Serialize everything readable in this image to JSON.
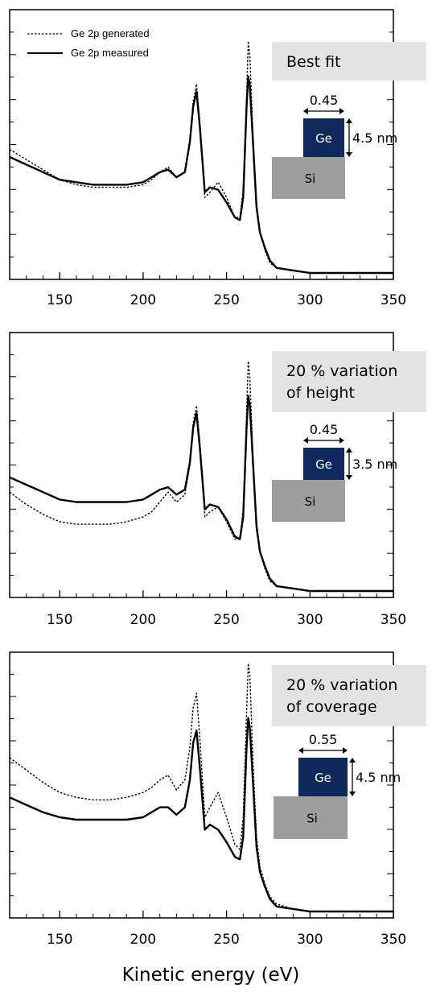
{
  "colors": {
    "ge_block": "#0e2a5c",
    "si_block": "#9e9e9e",
    "label_box": "#e3e3e3",
    "line": "#000000"
  },
  "chart_data": [
    {
      "type": "line",
      "title": "",
      "xlabel": "Kinetic energy (eV)",
      "ylabel": "",
      "xlim": [
        120,
        350
      ],
      "xticks": [
        "150",
        "200",
        "250",
        "300",
        "350"
      ],
      "legend": {
        "placement": "top-left",
        "entries": [
          "Ge 2p generated",
          "Ge 2p measured"
        ]
      },
      "annotation": {
        "lines": [
          "Best fit"
        ],
        "coverage": "0.45",
        "height": "4.5 nm",
        "ge": "Ge",
        "si": "Si"
      },
      "series": [
        {
          "name": "Ge 2p generated",
          "style": "dotted",
          "x": [
            120,
            130,
            140,
            150,
            160,
            170,
            180,
            190,
            200,
            205,
            210,
            215,
            220,
            225,
            228,
            230,
            232,
            234,
            237,
            240,
            245,
            250,
            255,
            258,
            260,
            262,
            263,
            264,
            266,
            268,
            270,
            273,
            276,
            280,
            290,
            300,
            320,
            350
          ],
          "y": [
            0.49,
            0.45,
            0.41,
            0.37,
            0.35,
            0.34,
            0.34,
            0.34,
            0.35,
            0.37,
            0.4,
            0.42,
            0.38,
            0.4,
            0.52,
            0.68,
            0.75,
            0.6,
            0.3,
            0.32,
            0.36,
            0.3,
            0.22,
            0.22,
            0.33,
            0.7,
            0.92,
            0.86,
            0.52,
            0.28,
            0.16,
            0.09,
            0.04,
            0.02,
            0.01,
            0.0,
            0.0,
            0.0
          ]
        },
        {
          "name": "Ge 2p measured",
          "style": "solid",
          "x": [
            120,
            130,
            140,
            150,
            160,
            170,
            180,
            190,
            200,
            205,
            210,
            215,
            220,
            225,
            228,
            230,
            232,
            234,
            237,
            240,
            245,
            250,
            255,
            258,
            260,
            262,
            263,
            264,
            266,
            268,
            270,
            273,
            276,
            280,
            290,
            300,
            320,
            350
          ],
          "y": [
            0.46,
            0.43,
            0.4,
            0.37,
            0.36,
            0.35,
            0.35,
            0.35,
            0.36,
            0.38,
            0.4,
            0.41,
            0.38,
            0.4,
            0.52,
            0.66,
            0.72,
            0.58,
            0.32,
            0.34,
            0.33,
            0.28,
            0.22,
            0.21,
            0.3,
            0.66,
            0.78,
            0.74,
            0.5,
            0.26,
            0.16,
            0.1,
            0.05,
            0.02,
            0.01,
            0.0,
            0.0,
            0.0
          ]
        }
      ]
    },
    {
      "type": "line",
      "title": "",
      "xlabel": "",
      "ylabel": "",
      "xlim": [
        120,
        350
      ],
      "xticks": [
        "150",
        "200",
        "250",
        "300",
        "350"
      ],
      "annotation": {
        "lines": [
          "20 % variation",
          "of height"
        ],
        "coverage": "0.45",
        "height": "3.5 nm",
        "ge": "Ge",
        "si": "Si"
      },
      "series": [
        {
          "name": "Ge 2p generated",
          "style": "dotted",
          "x": [
            120,
            130,
            140,
            150,
            160,
            170,
            180,
            190,
            200,
            205,
            210,
            215,
            220,
            225,
            228,
            230,
            232,
            234,
            237,
            240,
            245,
            250,
            255,
            258,
            260,
            262,
            263,
            264,
            266,
            268,
            270,
            273,
            276,
            280,
            290,
            300,
            320,
            350
          ],
          "y": [
            0.4,
            0.35,
            0.31,
            0.28,
            0.27,
            0.27,
            0.27,
            0.28,
            0.3,
            0.32,
            0.36,
            0.4,
            0.36,
            0.39,
            0.51,
            0.68,
            0.75,
            0.6,
            0.3,
            0.32,
            0.34,
            0.28,
            0.21,
            0.21,
            0.33,
            0.72,
            0.93,
            0.86,
            0.52,
            0.28,
            0.16,
            0.09,
            0.04,
            0.02,
            0.01,
            0.0,
            0.0,
            0.0
          ]
        },
        {
          "name": "Ge 2p measured",
          "style": "solid",
          "x": [
            120,
            130,
            140,
            150,
            160,
            170,
            180,
            190,
            200,
            205,
            210,
            215,
            220,
            225,
            228,
            230,
            232,
            234,
            237,
            240,
            245,
            250,
            255,
            258,
            260,
            262,
            263,
            264,
            266,
            268,
            270,
            273,
            276,
            280,
            290,
            300,
            320,
            350
          ],
          "y": [
            0.46,
            0.43,
            0.4,
            0.37,
            0.36,
            0.36,
            0.36,
            0.36,
            0.37,
            0.39,
            0.41,
            0.42,
            0.39,
            0.41,
            0.52,
            0.66,
            0.72,
            0.58,
            0.33,
            0.35,
            0.34,
            0.29,
            0.22,
            0.21,
            0.3,
            0.66,
            0.79,
            0.75,
            0.5,
            0.26,
            0.16,
            0.1,
            0.05,
            0.02,
            0.01,
            0.0,
            0.0,
            0.0
          ]
        }
      ]
    },
    {
      "type": "line",
      "title": "",
      "xlabel": "",
      "ylabel": "",
      "xlim": [
        120,
        350
      ],
      "xticks": [
        "150",
        "200",
        "250",
        "300",
        "350"
      ],
      "annotation": {
        "lines": [
          "20 % variation",
          "of coverage"
        ],
        "coverage": "0.55",
        "height": "4.5 nm",
        "ge": "Ge",
        "si": "Si"
      },
      "series": [
        {
          "name": "Ge 2p generated",
          "style": "dotted",
          "x": [
            120,
            130,
            140,
            150,
            160,
            170,
            180,
            190,
            200,
            205,
            210,
            215,
            220,
            225,
            228,
            230,
            232,
            234,
            237,
            240,
            245,
            250,
            255,
            258,
            260,
            262,
            263,
            264,
            266,
            268,
            270,
            273,
            276,
            280,
            290,
            300,
            320,
            350
          ],
          "y": [
            0.62,
            0.57,
            0.52,
            0.48,
            0.46,
            0.45,
            0.45,
            0.46,
            0.48,
            0.5,
            0.53,
            0.55,
            0.49,
            0.53,
            0.66,
            0.82,
            0.88,
            0.7,
            0.38,
            0.42,
            0.48,
            0.38,
            0.27,
            0.25,
            0.38,
            0.8,
            1.0,
            0.95,
            0.58,
            0.3,
            0.18,
            0.11,
            0.06,
            0.03,
            0.01,
            0.0,
            0.0,
            0.0
          ]
        },
        {
          "name": "Ge 2p measured",
          "style": "solid",
          "x": [
            120,
            130,
            140,
            150,
            160,
            170,
            180,
            190,
            200,
            205,
            210,
            215,
            220,
            225,
            228,
            230,
            232,
            234,
            237,
            240,
            245,
            250,
            255,
            258,
            260,
            262,
            263,
            264,
            266,
            268,
            270,
            273,
            276,
            280,
            290,
            300,
            320,
            350
          ],
          "y": [
            0.46,
            0.43,
            0.4,
            0.38,
            0.37,
            0.37,
            0.37,
            0.37,
            0.38,
            0.4,
            0.42,
            0.42,
            0.39,
            0.42,
            0.53,
            0.68,
            0.73,
            0.58,
            0.33,
            0.35,
            0.33,
            0.28,
            0.22,
            0.21,
            0.3,
            0.66,
            0.78,
            0.74,
            0.5,
            0.26,
            0.16,
            0.1,
            0.05,
            0.02,
            0.01,
            0.0,
            0.0,
            0.0
          ]
        }
      ]
    }
  ]
}
